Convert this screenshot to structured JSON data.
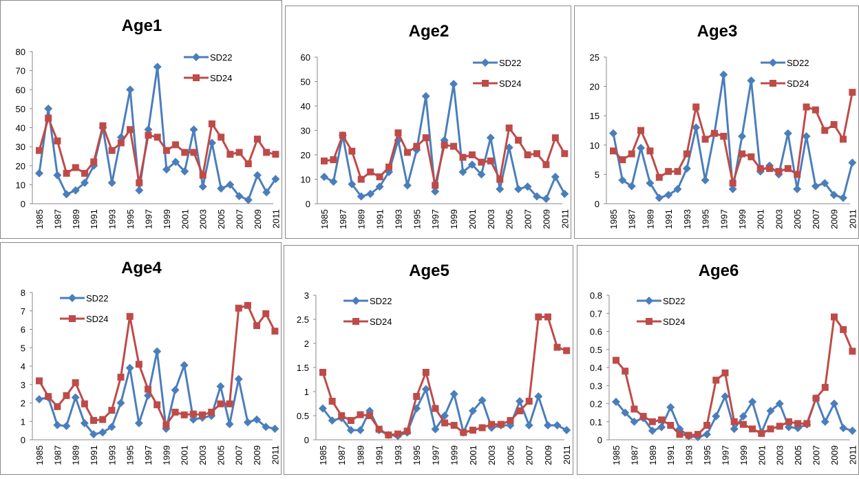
{
  "chart_data": [
    {
      "type": "line",
      "title": "Age1",
      "legend": "upper right",
      "grid": false,
      "categories": [
        "1985",
        null,
        "1987",
        null,
        "1989",
        null,
        "1991",
        null,
        "1993",
        null,
        "1995",
        null,
        "1997",
        null,
        "1999",
        null,
        "2001",
        null,
        "2003",
        null,
        "2005",
        null,
        "2007",
        null,
        "2009",
        null,
        "2011"
      ],
      "ylim": [
        0,
        80
      ],
      "yticks": [
        0,
        10,
        20,
        30,
        40,
        50,
        60,
        70,
        80
      ],
      "series": [
        {
          "name": "SD22",
          "color": "#4a7ebb",
          "marker": "diamond",
          "values": [
            16,
            50,
            15,
            5,
            7,
            11,
            20,
            40,
            11,
            35,
            60,
            7,
            39,
            72,
            18,
            22,
            17,
            39,
            9,
            32,
            8,
            10,
            4,
            2,
            15,
            6,
            13
          ]
        },
        {
          "name": "SD24",
          "color": "#be4b48",
          "marker": "square",
          "values": [
            28,
            45,
            33,
            16,
            19,
            16,
            22,
            41,
            28,
            32,
            39,
            11,
            36,
            35,
            28,
            31,
            27,
            27,
            15,
            42,
            35,
            26,
            27,
            21,
            34,
            27,
            26
          ]
        }
      ]
    },
    {
      "type": "line",
      "title": "Age2",
      "legend": "upper right",
      "grid": false,
      "categories": [
        "1985",
        null,
        "1987",
        null,
        "1989",
        null,
        "1991",
        null,
        "1993",
        null,
        "1995",
        null,
        "1997",
        null,
        "1999",
        null,
        "2001",
        null,
        "2003",
        null,
        "2005",
        null,
        "2007",
        null,
        "2009",
        null,
        "2011"
      ],
      "ylim": [
        0,
        60
      ],
      "yticks": [
        0,
        10,
        20,
        30,
        40,
        50,
        60
      ],
      "series": [
        {
          "name": "SD22",
          "color": "#4a7ebb",
          "marker": "diamond",
          "values": [
            11,
            9,
            28,
            8,
            3,
            4,
            7,
            13,
            26,
            7.5,
            22,
            44,
            5,
            26,
            49,
            13,
            16,
            12,
            27,
            6,
            23,
            6,
            7,
            3,
            2,
            11,
            4
          ]
        },
        {
          "name": "SD24",
          "color": "#be4b48",
          "marker": "square",
          "values": [
            17.5,
            18,
            28,
            21.5,
            10,
            13,
            11,
            15,
            29,
            21,
            23.5,
            27,
            7.5,
            24,
            23.5,
            19,
            20,
            17,
            17.5,
            10,
            31,
            26,
            20,
            20.5,
            16,
            27,
            20.5
          ]
        }
      ]
    },
    {
      "type": "line",
      "title": "Age3",
      "legend": "upper right",
      "grid": false,
      "categories": [
        "1985",
        null,
        "1987",
        null,
        "1989",
        null,
        "1991",
        null,
        "1993",
        null,
        "1995",
        null,
        "1997",
        null,
        "1999",
        null,
        "2001",
        null,
        "2003",
        null,
        "2005",
        null,
        "2007",
        null,
        "2009",
        null,
        "2011"
      ],
      "ylim": [
        0,
        25
      ],
      "yticks": [
        0,
        5,
        10,
        15,
        20,
        25
      ],
      "series": [
        {
          "name": "SD22",
          "color": "#4a7ebb",
          "marker": "diamond",
          "values": [
            12,
            4,
            3,
            9.5,
            3.5,
            1,
            1.5,
            2.5,
            6,
            13,
            4,
            12,
            22,
            2.5,
            11.5,
            21,
            5.5,
            6.5,
            5,
            12,
            2.5,
            11.5,
            3,
            3.5,
            1.5,
            1,
            7
          ]
        },
        {
          "name": "SD24",
          "color": "#be4b48",
          "marker": "square",
          "values": [
            9,
            7.5,
            8.5,
            12.5,
            9,
            4.5,
            5.5,
            5.5,
            8.5,
            16.5,
            11,
            12,
            11.5,
            3.5,
            8.5,
            8,
            6,
            6,
            5.5,
            6,
            5,
            16.5,
            16,
            12.5,
            13.5,
            11,
            19
          ]
        }
      ]
    },
    {
      "type": "line",
      "title": "Age4",
      "legend": "upper left",
      "grid": false,
      "categories": [
        "1985",
        null,
        "1987",
        null,
        "1989",
        null,
        "1991",
        null,
        "1993",
        null,
        "1995",
        null,
        "1997",
        null,
        "1999",
        null,
        "2001",
        null,
        "2003",
        null,
        "2005",
        null,
        "2007",
        null,
        "2009",
        null,
        "2011"
      ],
      "ylim": [
        0,
        8
      ],
      "yticks": [
        0,
        1,
        2,
        3,
        4,
        5,
        6,
        7,
        8
      ],
      "series": [
        {
          "name": "SD22",
          "color": "#4a7ebb",
          "marker": "diamond",
          "values": [
            2.2,
            2.3,
            0.8,
            0.75,
            2.3,
            0.9,
            0.3,
            0.4,
            0.7,
            2,
            3.9,
            0.9,
            2.4,
            4.8,
            0.6,
            2.7,
            4.05,
            1.1,
            1.2,
            1.3,
            2.9,
            0.85,
            3.3,
            0.95,
            1.1,
            0.7,
            0.6
          ]
        },
        {
          "name": "SD24",
          "color": "#be4b48",
          "marker": "square",
          "values": [
            3.2,
            2.35,
            1.8,
            2.4,
            3.1,
            1.95,
            1.05,
            1.1,
            1.6,
            3.4,
            6.7,
            4.1,
            2.75,
            1.9,
            0.8,
            1.5,
            1.35,
            1.4,
            1.35,
            1.5,
            1.95,
            1.95,
            7.15,
            7.3,
            6.2,
            6.85,
            5.9
          ]
        }
      ]
    },
    {
      "type": "line",
      "title": "Age5",
      "legend": "upper left",
      "grid": false,
      "categories": [
        "1985",
        null,
        "1987",
        null,
        "1989",
        null,
        "1991",
        null,
        "1993",
        null,
        "1995",
        null,
        "1997",
        null,
        "1999",
        null,
        "2001",
        null,
        "2003",
        null,
        "2005",
        null,
        "2007",
        null,
        "2009",
        null,
        "2011"
      ],
      "ylim": [
        0,
        3
      ],
      "yticks": [
        0,
        0.5,
        1,
        1.5,
        2,
        2.5,
        3
      ],
      "series": [
        {
          "name": "SD22",
          "color": "#4a7ebb",
          "marker": "diamond",
          "values": [
            0.65,
            0.4,
            0.45,
            0.2,
            0.2,
            0.6,
            0.2,
            0.1,
            0.08,
            0.15,
            0.65,
            1.05,
            0.22,
            0.5,
            0.95,
            0.15,
            0.6,
            0.82,
            0.25,
            0.3,
            0.3,
            0.8,
            0.3,
            0.9,
            0.3,
            0.3,
            0.2
          ]
        },
        {
          "name": "SD24",
          "color": "#be4b48",
          "marker": "square",
          "values": [
            1.4,
            0.8,
            0.5,
            0.4,
            0.52,
            0.5,
            0.22,
            0.1,
            0.12,
            0.18,
            0.9,
            1.4,
            0.65,
            0.35,
            0.3,
            0.15,
            0.2,
            0.25,
            0.32,
            0.32,
            0.4,
            0.6,
            0.8,
            2.55,
            2.55,
            1.92,
            1.85
          ]
        }
      ]
    },
    {
      "type": "line",
      "title": "Age6",
      "legend": "upper left",
      "grid": false,
      "categories": [
        "1985",
        null,
        "1987",
        null,
        "1989",
        null,
        "1991",
        null,
        "1993",
        null,
        "1995",
        null,
        "1997",
        null,
        "1999",
        null,
        "2001",
        null,
        "2003",
        null,
        "2005",
        null,
        "2007",
        null,
        "2009",
        null,
        "2011"
      ],
      "ylim": [
        0,
        0.8
      ],
      "yticks": [
        0,
        0.1,
        0.2,
        0.3,
        0.4,
        0.5,
        0.6,
        0.7,
        0.8
      ],
      "series": [
        {
          "name": "SD22",
          "color": "#4a7ebb",
          "marker": "diamond",
          "values": [
            0.21,
            0.15,
            0.1,
            0.12,
            0.05,
            0.07,
            0.18,
            0.06,
            0.02,
            0.015,
            0.03,
            0.13,
            0.24,
            0.06,
            0.13,
            0.21,
            0.04,
            0.16,
            0.2,
            0.07,
            0.065,
            0.085,
            0.23,
            0.1,
            0.2,
            0.065,
            0.05
          ]
        },
        {
          "name": "SD24",
          "color": "#be4b48",
          "marker": "square",
          "values": [
            0.44,
            0.38,
            0.17,
            0.13,
            0.1,
            0.11,
            0.08,
            0.03,
            0.025,
            0.03,
            0.08,
            0.33,
            0.37,
            0.1,
            0.085,
            0.06,
            0.035,
            0.06,
            0.075,
            0.1,
            0.09,
            0.09,
            0.23,
            0.29,
            0.68,
            0.61,
            0.49
          ]
        }
      ]
    }
  ]
}
